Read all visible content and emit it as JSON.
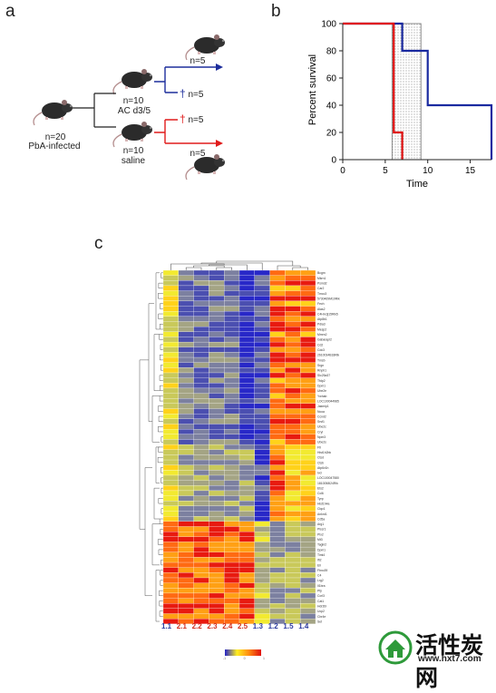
{
  "panel_a": {
    "letter": "a",
    "start_n": "n=20",
    "start_label": "PbA-infected",
    "ac_n": "n=10",
    "ac_label": "AC d3/5",
    "saline_n": "n=10",
    "saline_label": "saline",
    "ac_survive": "n=5",
    "ac_die": "n=5",
    "saline_die": "n=5",
    "saline_survive": "n=5",
    "dagger": "†",
    "colors": {
      "ac": "#1d2e9c",
      "saline": "#e01b1b"
    }
  },
  "panel_b": {
    "letter": "b",
    "chart_data": {
      "type": "line",
      "xlabel": "Time",
      "ylabel": "Percent survival",
      "xlim": [
        0,
        17.5
      ],
      "ylim": [
        0,
        100
      ],
      "xticks": [
        "0",
        "5",
        "10",
        "15"
      ],
      "yticks": [
        "0",
        "20",
        "40",
        "60",
        "80",
        "100"
      ],
      "shaded_interval": [
        5.8,
        9.2
      ],
      "series": [
        {
          "color": "#1a2aa0",
          "x": [
            0,
            7,
            7,
            10,
            10,
            17.5,
            17.5
          ],
          "y": [
            100,
            100,
            80,
            80,
            40,
            40,
            0
          ]
        },
        {
          "color": "#e01010",
          "x": [
            0,
            6,
            6,
            7,
            7
          ],
          "y": [
            100,
            100,
            20,
            20,
            0
          ]
        }
      ]
    }
  },
  "panel_c": {
    "letter": "c",
    "columns": [
      {
        "label": "1.1",
        "color": "#2b3a9e"
      },
      {
        "label": "2.1",
        "color": "#d22e1e"
      },
      {
        "label": "2.2",
        "color": "#d22e1e"
      },
      {
        "label": "2.3",
        "color": "#d22e1e"
      },
      {
        "label": "2.4",
        "color": "#d22e1e"
      },
      {
        "label": "2.5",
        "color": "#d22e1e"
      },
      {
        "label": "1.3",
        "color": "#2b3a9e"
      },
      {
        "label": "1.2",
        "color": "#2b3a9e"
      },
      {
        "label": "1.5",
        "color": "#2b3a9e"
      },
      {
        "label": "1.4",
        "color": "#2b3a9e"
      }
    ],
    "genes": [
      "Bcgm",
      "Mkrn1",
      "Psmd2",
      "Car2",
      "Tmcc3",
      "5730469M10Rik",
      "Fech",
      "Alas2",
      "C4Hrx3j15Rik5",
      "Atp8b1",
      "Pdia3",
      "Mesp2",
      "Mmrn2",
      "Gabarapl2",
      "Cd2",
      "Cdc3",
      "2610034B18Rik",
      "Tmsb",
      "Srgn",
      "Rnph1",
      "Slc25a37",
      "Tfdp2",
      "Dpm1",
      "Ube2e",
      "Ywhab",
      "LOC100044985",
      "Jakmip1",
      "Ncoa",
      "Ccnd2",
      "Srsf1",
      "Ube2c",
      "Cryl",
      "Npm3",
      "Ube2s",
      "Ftl",
      "Hist1h2bk",
      "Ctsd",
      "Ctsb",
      "Atp6v1h",
      "Ivd",
      "LOC100047580",
      "1810058I24Rik",
      "Ets2",
      "Ccl6",
      "Tyrp",
      "Hist1h4a",
      "Clqc1",
      "Ankrd1",
      "Cd5a",
      "Arg1",
      "Plscr1",
      "Ptx2",
      "Mt3",
      "Tagln2",
      "Dpm1",
      "Timl4",
      "Ifi2",
      "Ell",
      "Fbxo39",
      "C4",
      "Lrg2",
      "Il1bra",
      "Pfp",
      "Ccrl3",
      "Cat1",
      "Hdr2bl",
      "Ucp2",
      "Cbr4e",
      "Set"
    ],
    "color_key": {
      "ticks": [
        "-1",
        "0",
        "1"
      ]
    }
  },
  "watermark": {
    "text": "活性炭网",
    "url": "www.hxt7.com"
  }
}
